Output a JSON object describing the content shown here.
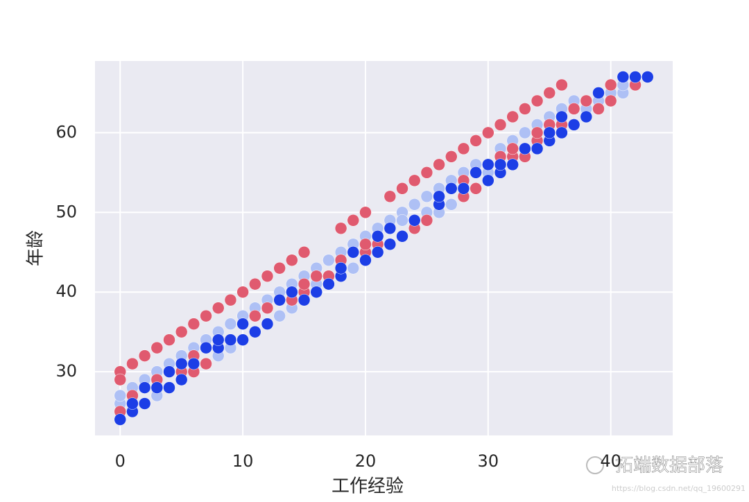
{
  "chart_data": {
    "type": "scatter",
    "xlabel": "工作经验",
    "ylabel": "年龄",
    "xlim": [
      -2.05,
      45.05
    ],
    "ylim": [
      22,
      69
    ],
    "xticks": [
      0,
      10,
      20,
      30,
      40
    ],
    "yticks": [
      30,
      40,
      50,
      60
    ],
    "grid": true,
    "series": [
      {
        "color": "#aec0f5",
        "x": [
          0,
          0,
          1,
          2,
          3,
          3,
          4,
          5,
          6,
          7,
          8,
          8,
          9,
          9,
          10,
          11,
          12,
          13,
          13,
          14,
          14,
          15,
          16,
          16,
          17,
          18,
          19,
          19,
          20,
          21,
          22,
          23,
          23,
          24,
          25,
          25,
          26,
          26,
          27,
          27,
          28,
          29,
          30,
          31,
          32,
          33,
          34,
          35,
          36,
          37,
          38,
          39,
          40,
          41,
          41
        ],
        "values": [
          26,
          27,
          28,
          29,
          27,
          30,
          31,
          32,
          33,
          34,
          35,
          32,
          33,
          36,
          37,
          38,
          39,
          40,
          37,
          41,
          38,
          42,
          43,
          41,
          44,
          45,
          46,
          43,
          47,
          48,
          49,
          50,
          49,
          51,
          52,
          50,
          53,
          50,
          54,
          51,
          55,
          56,
          55,
          58,
          59,
          60,
          61,
          62,
          63,
          64,
          63,
          64,
          65,
          65,
          66
        ]
      },
      {
        "color": "#e05a6f",
        "x": [
          0,
          1,
          2,
          3,
          4,
          5,
          6,
          7,
          8,
          9,
          10,
          11,
          12,
          13,
          14,
          15,
          18,
          19,
          20,
          22,
          23,
          24,
          25,
          26,
          27,
          28,
          29,
          30,
          31,
          32,
          33,
          34,
          35,
          36,
          0,
          0,
          0,
          1,
          3,
          5,
          6,
          6,
          7,
          11,
          12,
          13,
          14,
          15,
          15,
          16,
          17,
          18,
          19,
          20,
          20,
          21,
          24,
          25,
          28,
          28,
          29,
          31,
          32,
          32,
          33,
          34,
          34,
          35,
          36,
          37,
          38,
          39,
          40,
          40,
          42
        ],
        "values": [
          30,
          31,
          32,
          33,
          34,
          35,
          36,
          37,
          38,
          39,
          40,
          41,
          42,
          43,
          44,
          45,
          48,
          49,
          50,
          52,
          53,
          54,
          55,
          56,
          57,
          58,
          59,
          60,
          61,
          62,
          63,
          64,
          65,
          66,
          24,
          25,
          29,
          27,
          29,
          30,
          30,
          32,
          31,
          37,
          38,
          39,
          39,
          40,
          41,
          42,
          42,
          44,
          45,
          45,
          46,
          46,
          48,
          49,
          52,
          54,
          53,
          57,
          57,
          58,
          57,
          59,
          60,
          61,
          61,
          63,
          64,
          63,
          64,
          66,
          66
        ]
      },
      {
        "color": "#1c3ee6",
        "x": [
          0,
          1,
          1,
          2,
          2,
          3,
          4,
          4,
          5,
          5,
          6,
          7,
          8,
          8,
          9,
          10,
          10,
          11,
          12,
          13,
          14,
          15,
          16,
          17,
          18,
          18,
          19,
          20,
          21,
          21,
          22,
          22,
          23,
          24,
          26,
          26,
          27,
          28,
          29,
          30,
          30,
          31,
          31,
          32,
          33,
          34,
          35,
          35,
          36,
          36,
          37,
          38,
          39,
          41,
          42,
          43
        ],
        "values": [
          24,
          25,
          26,
          26,
          28,
          28,
          28,
          30,
          29,
          31,
          31,
          33,
          33,
          34,
          34,
          34,
          36,
          35,
          36,
          39,
          40,
          39,
          40,
          41,
          42,
          43,
          45,
          44,
          45,
          47,
          46,
          48,
          47,
          49,
          51,
          52,
          53,
          53,
          55,
          54,
          56,
          55,
          56,
          56,
          58,
          58,
          59,
          60,
          60,
          62,
          61,
          62,
          65,
          67,
          67,
          67
        ]
      }
    ]
  },
  "watermark": "拓端数据部落",
  "watermark_url": "https://blog.csdn.net/qq_19600291"
}
